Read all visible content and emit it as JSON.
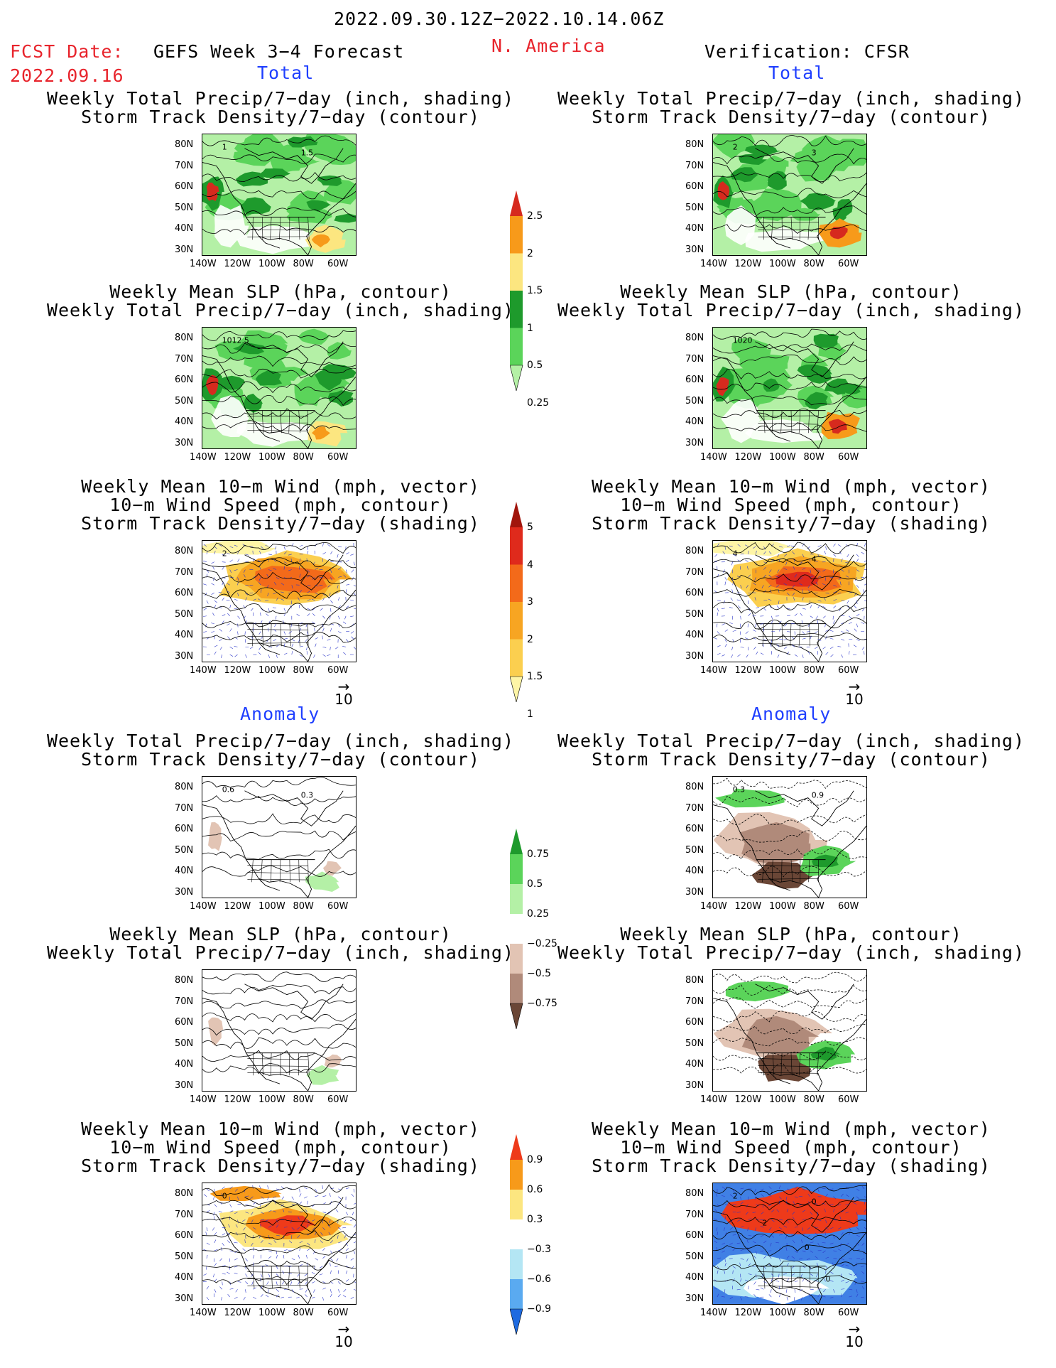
{
  "header": {
    "date_range": "2022.09.30.12Z−2022.10.14.06Z",
    "fcst_label": "FCST Date:",
    "fcst_date": "2022.09.16",
    "model_title": "GEFS Week 3−4 Forecast",
    "region": "N. America",
    "verification": "Verification: CFSR"
  },
  "sections": {
    "total_left": "Total",
    "total_right": "Total",
    "anomaly_left": "Anomaly",
    "anomaly_right": "Anomaly"
  },
  "panel_titles": {
    "precip_storm": [
      "Weekly Total Precip/7−day (inch, shading)",
      "Storm Track Density/7−day (contour)"
    ],
    "slp_precip": [
      "Weekly Mean SLP (hPa, contour)",
      "Weekly Total Precip/7−day (inch, shading)"
    ],
    "wind_storm": [
      "Weekly Mean 10−m Wind (mph, vector)",
      "10−m Wind Speed (mph, contour)",
      "Storm Track Density/7−day (shading)"
    ]
  },
  "axes": {
    "lat_labels": [
      "80N",
      "70N",
      "60N",
      "50N",
      "40N",
      "30N"
    ],
    "lon_labels": [
      "140W",
      "120W",
      "100W",
      "80W",
      "60W"
    ]
  },
  "vector_ref": "10",
  "contour_labels": {
    "p1_left": [
      "1",
      "1.5"
    ],
    "p1_right": [
      "2",
      "3"
    ],
    "p2_left": [
      "1012.5"
    ],
    "p2_right": [
      "1020"
    ],
    "p3_left": [
      "2"
    ],
    "p3_right": [
      "4",
      "4"
    ],
    "p4_left": [
      "0.6",
      "0.3"
    ],
    "p4_right": [
      "0.3",
      "0.9"
    ],
    "p6_left": [
      "0"
    ],
    "p6_right": [
      "2",
      "0",
      "2",
      "0",
      "0"
    ]
  },
  "colorbars": {
    "total_precip": {
      "labels": [
        "2.5",
        "2",
        "1.5",
        "1",
        "0.5",
        "0.25"
      ],
      "colors": [
        "#d62a1e",
        "#f79a1a",
        "#fce680",
        "#1e9a2c",
        "#5bd45a",
        "#b4f0a6"
      ]
    },
    "total_storm": {
      "labels": [
        "5",
        "4",
        "3",
        "2",
        "1.5",
        "1"
      ],
      "colors": [
        "#a1150c",
        "#df2a1c",
        "#f36a1a",
        "#f7a522",
        "#fbcf4f",
        "#fef5a6"
      ]
    },
    "anom_precip": {
      "labels": [
        "0.75",
        "0.5",
        "0.25",
        "−0.25",
        "−0.5",
        "−0.75"
      ],
      "colors": [
        "#1e9a2c",
        "#5bd45a",
        "#b4f0a6",
        "#ffffff",
        "#e2c4b4",
        "#b08a7a",
        "#6a4636"
      ]
    },
    "anom_storm": {
      "labels": [
        "0.9",
        "0.6",
        "0.3",
        "−0.3",
        "−0.6",
        "−0.9"
      ],
      "colors": [
        "#ee3a1a",
        "#f79a1a",
        "#fce680",
        "#ffffff",
        "#b4e6f4",
        "#5aaaf0",
        "#1e6ae0"
      ]
    }
  }
}
